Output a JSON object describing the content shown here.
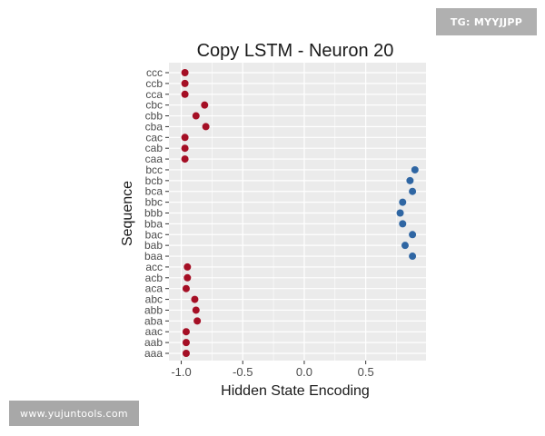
{
  "watermarks": {
    "top": "TG: MYYJJPP",
    "bottom": "www.yujuntools.com"
  },
  "colors": {
    "negative": "#a50f25",
    "positive": "#2f66a3",
    "panel": "#ebebeb",
    "grid": "#ffffff"
  },
  "chart_data": {
    "type": "scatter",
    "title": "Copy LSTM - Neuron 20",
    "xlabel": "Hidden State Encoding",
    "ylabel": "Sequence",
    "xlim": [
      -1.1,
      0.99
    ],
    "xticks": [
      -1.0,
      -0.5,
      0.0,
      0.5
    ],
    "xtick_labels": [
      "-1.0",
      "-0.5",
      "0.0",
      "0.5"
    ],
    "grid": true,
    "legend": "none",
    "categories": [
      "ccc",
      "ccb",
      "cca",
      "cbc",
      "cbb",
      "cba",
      "cac",
      "cab",
      "caa",
      "bcc",
      "bcb",
      "bca",
      "bbc",
      "bbb",
      "bba",
      "bac",
      "bab",
      "baa",
      "acc",
      "acb",
      "aca",
      "abc",
      "abb",
      "aba",
      "aac",
      "aab",
      "aaa"
    ],
    "values": [
      -0.97,
      -0.97,
      -0.97,
      -0.81,
      -0.88,
      -0.8,
      -0.97,
      -0.97,
      -0.97,
      0.9,
      0.86,
      0.88,
      0.8,
      0.78,
      0.8,
      0.88,
      0.82,
      0.88,
      -0.95,
      -0.95,
      -0.96,
      -0.89,
      -0.88,
      -0.87,
      -0.96,
      -0.96,
      -0.96
    ]
  }
}
